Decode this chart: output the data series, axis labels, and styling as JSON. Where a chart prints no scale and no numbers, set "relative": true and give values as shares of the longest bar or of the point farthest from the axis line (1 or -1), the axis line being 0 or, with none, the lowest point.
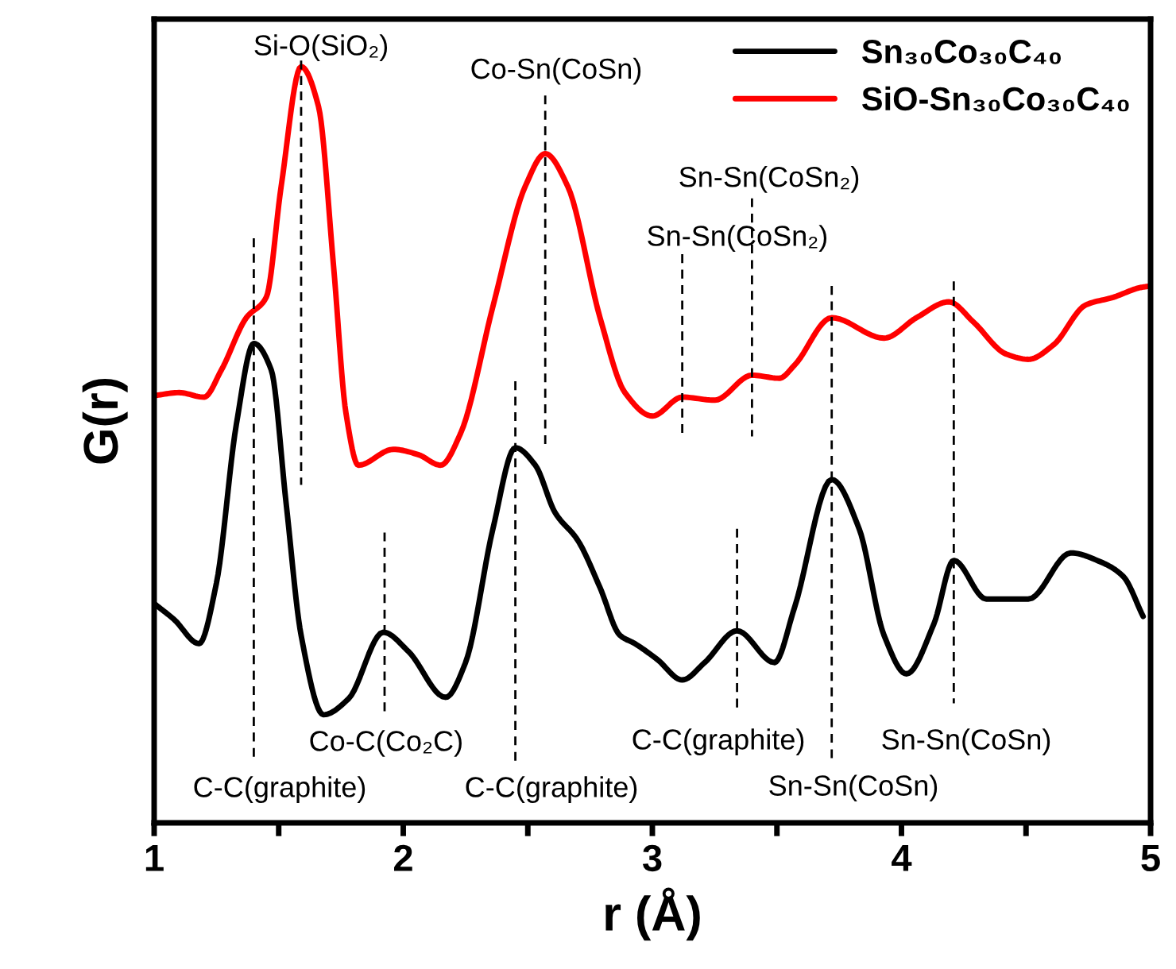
{
  "chart_data": {
    "type": "line",
    "relative": true,
    "xlabel": "r (Å)",
    "ylabel": "G(r)",
    "xlim": [
      1,
      5
    ],
    "xticks": [
      1,
      {
        "value": 1.5,
        "label": null
      },
      2,
      {
        "value": 2.5,
        "label": null
      },
      3,
      {
        "value": 3.5,
        "label": null
      },
      4,
      {
        "value": 4.5,
        "label": null
      },
      5
    ],
    "legend": "top right",
    "grid": false,
    "line_style": "solid",
    "marker": "none",
    "series": [
      {
        "name": "Sn₃₀Co₃₀C₄₀",
        "color": "#000000",
        "x": [
          1.0,
          1.08,
          1.18,
          1.25,
          1.33,
          1.4,
          1.47,
          1.53,
          1.59,
          1.68,
          1.78,
          1.92,
          2.02,
          2.17,
          2.25,
          2.36,
          2.45,
          2.53,
          2.61,
          2.7,
          2.79,
          2.87,
          2.93,
          3.02,
          3.12,
          3.21,
          3.34,
          3.49,
          3.57,
          3.72,
          3.83,
          3.93,
          4.02,
          4.13,
          4.21,
          4.34,
          4.42,
          4.51,
          4.68,
          4.8,
          4.89,
          4.97
        ],
        "values": [
          0.29,
          0.269,
          0.237,
          0.317,
          0.527,
          0.634,
          0.599,
          0.422,
          0.248,
          0.143,
          0.164,
          0.252,
          0.227,
          0.166,
          0.212,
          0.389,
          0.496,
          0.473,
          0.41,
          0.374,
          0.311,
          0.248,
          0.237,
          0.216,
          0.189,
          0.212,
          0.254,
          0.212,
          0.284,
          0.454,
          0.389,
          0.248,
          0.197,
          0.263,
          0.347,
          0.296,
          0.296,
          0.296,
          0.357,
          0.345,
          0.326,
          0.273
        ]
      },
      {
        "name": "SiO-Sn₃₀Co₃₀C₄₀",
        "color": "#ff0000",
        "x": [
          1.0,
          1.1,
          1.2,
          1.27,
          1.37,
          1.45,
          1.51,
          1.59,
          1.66,
          1.72,
          1.77,
          1.82,
          1.96,
          2.06,
          2.15,
          2.23,
          2.36,
          2.49,
          2.57,
          2.66,
          2.79,
          2.89,
          3.0,
          3.12,
          3.25,
          3.4,
          3.51,
          3.57,
          3.72,
          3.93,
          4.06,
          4.19,
          4.29,
          4.42,
          4.51,
          4.61,
          4.74,
          4.85,
          4.96,
          5.0
        ],
        "values": [
          0.565,
          0.569,
          0.563,
          0.599,
          0.668,
          0.695,
          0.842,
          1.0,
          0.947,
          0.737,
          0.542,
          0.473,
          0.494,
          0.487,
          0.473,
          0.515,
          0.683,
          0.842,
          0.885,
          0.842,
          0.668,
          0.569,
          0.538,
          0.563,
          0.559,
          0.592,
          0.588,
          0.605,
          0.668,
          0.641,
          0.668,
          0.689,
          0.662,
          0.62,
          0.613,
          0.632,
          0.685,
          0.695,
          0.708,
          0.71
        ]
      }
    ],
    "ref_lines": [
      {
        "axis": "x",
        "value": 1.59,
        "label": "Si-O(SiO₂)",
        "line_style": "dashed",
        "color": "#000000"
      },
      {
        "axis": "x",
        "value": 2.57,
        "label": "Co-Sn(CoSn)",
        "line_style": "dashed",
        "color": "#000000"
      },
      {
        "axis": "x",
        "value": 3.4,
        "label": "Sn-Sn(CoSn₂)",
        "line_style": "dashed",
        "color": "#000000"
      },
      {
        "axis": "x",
        "value": 3.12,
        "label": "Sn-Sn(CoSn₂)",
        "line_style": "dashed",
        "color": "#000000"
      },
      {
        "axis": "x",
        "value": 1.4,
        "label": "C-C(graphite)",
        "line_style": "dashed",
        "color": "#000000"
      },
      {
        "axis": "x",
        "value": 1.925,
        "label": "Co-C(Co₂C)",
        "line_style": "dashed",
        "color": "#000000"
      },
      {
        "axis": "x",
        "value": 2.45,
        "label": "C-C(graphite)",
        "line_style": "dashed",
        "color": "#000000"
      },
      {
        "axis": "x",
        "value": 3.34,
        "label": "C-C(graphite)",
        "line_style": "dashed",
        "color": "#000000"
      },
      {
        "axis": "x",
        "value": 3.72,
        "label": "Sn-Sn(CoSn)",
        "line_style": "dashed",
        "color": "#000000"
      },
      {
        "axis": "x",
        "value": 4.21,
        "label": "Sn-Sn(CoSn)",
        "line_style": "dashed",
        "color": "#000000"
      }
    ]
  }
}
